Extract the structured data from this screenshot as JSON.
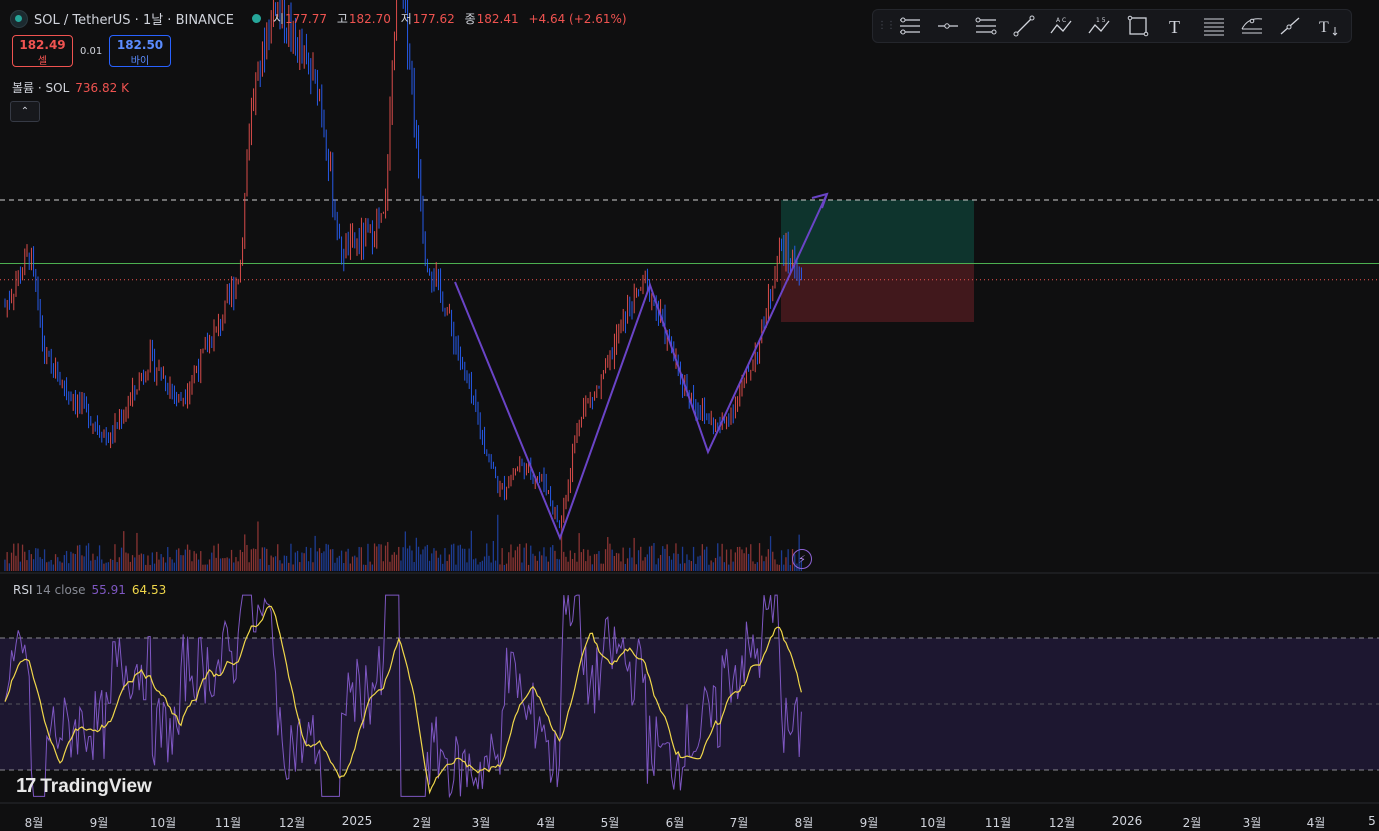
{
  "header": {
    "symbol": "SOL / TetherUS · 1날 · BINANCE",
    "open_label": "시",
    "open": "177.77",
    "high_label": "고",
    "high": "182.70",
    "low_label": "저",
    "low": "177.62",
    "close_label": "종",
    "close": "182.41",
    "change": "+4.64 (+2.61%)"
  },
  "trade": {
    "sell_price": "182.49",
    "sell_label": "셀",
    "spread": "0.01",
    "buy_price": "182.50",
    "buy_label": "바이"
  },
  "volume": {
    "label": "볼륨 · SOL",
    "value": "736.82 K"
  },
  "collapse_glyph": "⌃",
  "rsi": {
    "label": "RSI",
    "params": "14 close",
    "value": "55.91",
    "ma_value": "64.53"
  },
  "brand": {
    "logo": "17",
    "name": "TradingView"
  },
  "toolbar": {
    "tools": [
      "info-line-icon",
      "horizontal-ray-icon",
      "parallel-channel-icon",
      "trend-line-icon",
      "abc-pattern-icon",
      "elliott-wave-icon",
      "rectangle-icon",
      "text-icon",
      "fib-retracement-icon",
      "fib-extension-icon",
      "ray-icon",
      "text-tool-icon"
    ],
    "text_glyph": "T",
    "abc_letters": "A C",
    "wave_numbers": "1 5"
  },
  "x_axis": [
    "8월",
    "9월",
    "10월",
    "11월",
    "12월",
    "2025",
    "2월",
    "3월",
    "4월",
    "5월",
    "6월",
    "7월",
    "8월",
    "9월",
    "10월",
    "11월",
    "12월",
    "2026",
    "2월",
    "3월",
    "4월",
    "5"
  ],
  "colors": {
    "up": "#ef5350",
    "down": "#2962ff",
    "rsi": "#7e57c2",
    "rsi_ma": "#f0d74a",
    "target": "#0e3b33",
    "stop": "#4a1a1f",
    "pattern": "#6a44c7",
    "support": "#4caf50"
  },
  "chart_data": {
    "type": "candlestick",
    "months": [
      "8월",
      "9월",
      "10월",
      "11월",
      "12월",
      "2025",
      "2월",
      "3월",
      "4월",
      "5월",
      "6월",
      "7월",
      "8월"
    ],
    "monthly_close_approx": [
      145,
      135,
      155,
      210,
      225,
      190,
      175,
      135,
      110,
      170,
      160,
      150,
      182.41
    ],
    "last_close": 182.41,
    "levels": {
      "resistance_dashed": 205,
      "support_green": 187,
      "current_dotted": 182.4
    },
    "rsi_range": [
      30,
      70
    ]
  }
}
